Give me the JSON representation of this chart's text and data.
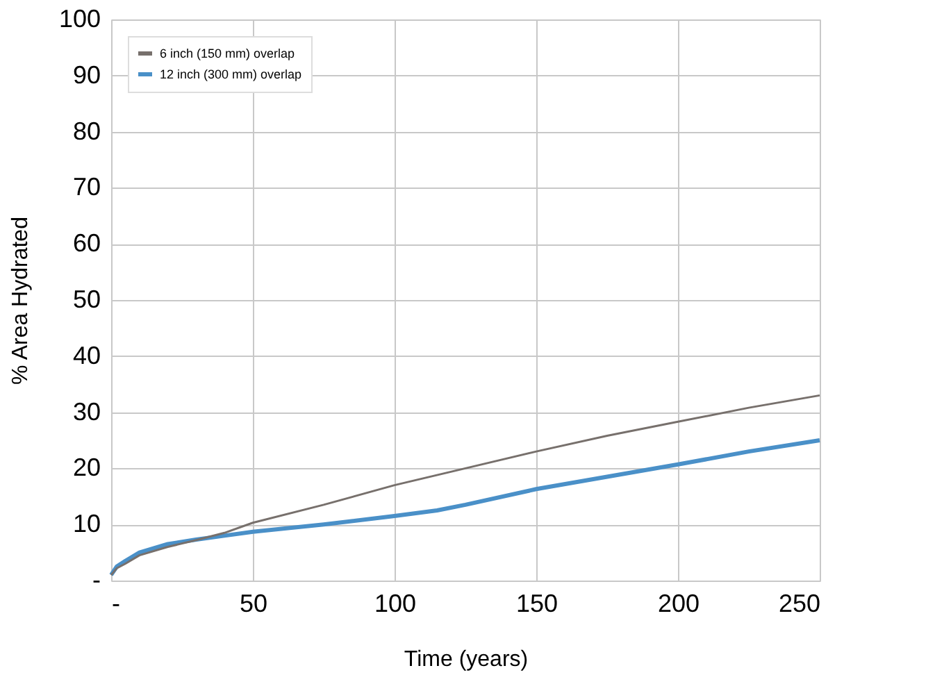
{
  "chart_data": {
    "type": "line",
    "xlabel": "Time (years)",
    "ylabel": "% Area Hydrated",
    "xlim": [
      0,
      250
    ],
    "xticks": [
      {
        "value": 0,
        "label": "-"
      },
      50,
      100,
      150,
      200,
      250
    ],
    "ylim": [
      0,
      100
    ],
    "yticks": [
      {
        "value": 0,
        "label": "-"
      },
      10,
      20,
      30,
      40,
      50,
      60,
      70,
      80,
      90,
      100
    ],
    "grid": true,
    "legend": "top left",
    "marker": "none",
    "line_style": "solid",
    "series": [
      {
        "name": "6 inch (150 mm) overlap",
        "color": "#77706c",
        "x": [
          0,
          2,
          5,
          10,
          20,
          30,
          40,
          50,
          75,
          100,
          125,
          150,
          175,
          200,
          225,
          250
        ],
        "values": [
          1,
          2.2,
          3,
          4.5,
          6,
          7.2,
          8.5,
          10.3,
          13.5,
          17,
          20,
          23,
          25.8,
          28.3,
          30.8,
          33
        ]
      },
      {
        "name": "12 inch (300 mm) overlap",
        "color": "#4a90c8",
        "x": [
          0,
          2,
          5,
          10,
          20,
          30,
          40,
          50,
          75,
          100,
          115,
          125,
          150,
          175,
          200,
          225,
          250
        ],
        "values": [
          1,
          2.5,
          3.5,
          5,
          6.5,
          7.3,
          8,
          8.7,
          10,
          11.5,
          12.5,
          13.5,
          16.3,
          18.5,
          20.7,
          23,
          25
        ]
      }
    ]
  }
}
